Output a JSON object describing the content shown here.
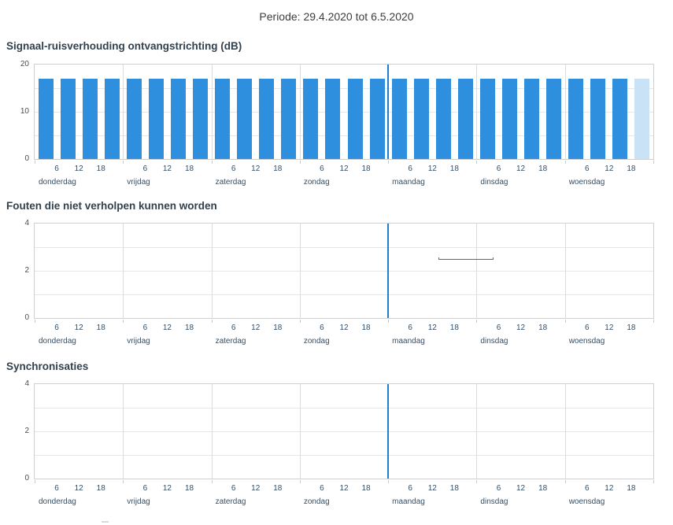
{
  "header": {
    "period_label": "Periode: 29.4.2020 tot 6.5.2020"
  },
  "colors": {
    "bar": "#2e8fdf",
    "bar_incomplete": "#c9e2f6",
    "event_line": "#1e7ecb",
    "range_segment": "#666666",
    "plot_border": "#cfcfcf",
    "gridline": "#e6e6e6",
    "day_separator": "#dcdcdc",
    "axis_text": "#344f68",
    "ytick_text": "#4d4d4d",
    "title_text": "#32414e"
  },
  "chart_data": [
    {
      "type": "bar",
      "title": "Signaal-ruisverhouding ontvangstrichting (dB)",
      "ylabel": "dB",
      "ylim": [
        0,
        20
      ],
      "yticks": [
        20,
        10,
        0
      ],
      "minor_gridlines": [
        5,
        10,
        15
      ],
      "days": [
        "donderdag",
        "vrijdag",
        "zaterdag",
        "zondag",
        "maandag",
        "dinsdag",
        "woensdag"
      ],
      "hour_ticks": [
        "6",
        "12",
        "18"
      ],
      "hours_per_bar": 6,
      "values": [
        17,
        17,
        17,
        17,
        17,
        17,
        17,
        17,
        17,
        17,
        17,
        17,
        17,
        17,
        17,
        17,
        17,
        17,
        17,
        17,
        17,
        17,
        17,
        17,
        17,
        17,
        17,
        17
      ],
      "last_bar_incomplete": true,
      "event_line_at_day": 4,
      "segments": []
    },
    {
      "type": "line",
      "title": "Fouten die niet verholpen kunnen worden",
      "ylim": [
        0,
        4
      ],
      "yticks": [
        4,
        2,
        0
      ],
      "minor_gridlines": [
        1,
        2,
        3
      ],
      "days": [
        "donderdag",
        "vrijdag",
        "zaterdag",
        "zondag",
        "maandag",
        "dinsdag",
        "woensdag"
      ],
      "hour_ticks": [
        "6",
        "12",
        "18"
      ],
      "values": [],
      "event_line_at_day": 4,
      "segments": [
        {
          "start_day": 4.57,
          "end_day": 5.19,
          "value": 2.5
        }
      ]
    },
    {
      "type": "line",
      "title": "Synchronisaties",
      "ylim": [
        0,
        4
      ],
      "yticks": [
        4,
        2,
        0
      ],
      "minor_gridlines": [
        1,
        2,
        3
      ],
      "days": [
        "donderdag",
        "vrijdag",
        "zaterdag",
        "zondag",
        "maandag",
        "dinsdag",
        "woensdag"
      ],
      "hour_ticks": [
        "6",
        "12",
        "18"
      ],
      "values": [],
      "event_line_at_day": 4,
      "segments": []
    }
  ]
}
